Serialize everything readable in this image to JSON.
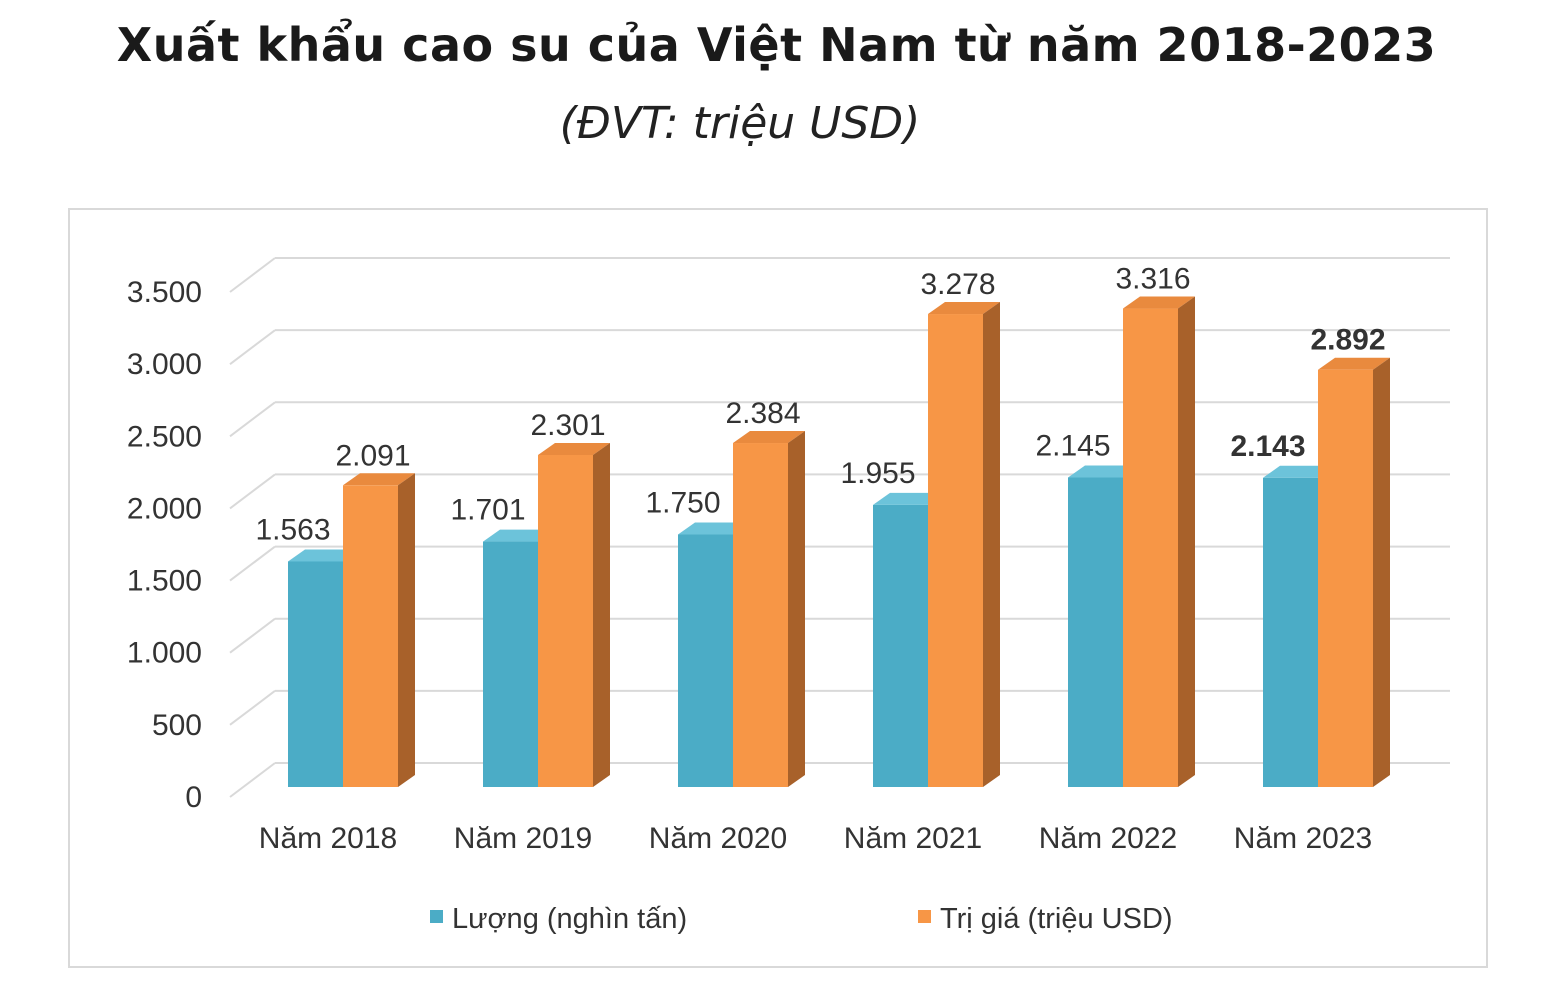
{
  "chart_data": {
    "type": "bar",
    "title": "Xuất khẩu cao su của Việt Nam từ năm 2018-2023",
    "subtitle": "(ĐVT: triệu USD)",
    "categories": [
      "Năm 2018",
      "Năm 2019",
      "Năm 2020",
      "Năm 2021",
      "Năm 2022",
      "Năm 2023"
    ],
    "series": [
      {
        "name": "Lượng (nghìn tấn)",
        "values": [
          1563,
          1701,
          1750,
          1955,
          2145,
          2143
        ],
        "labels": [
          "1.563",
          "1.701",
          "1.750",
          "1.955",
          "2.145",
          "2.143"
        ],
        "color": "#4bacc6"
      },
      {
        "name": "Trị giá (triệu USD)",
        "values": [
          2091,
          2301,
          2384,
          3278,
          3316,
          2892
        ],
        "labels": [
          "2.091",
          "2.301",
          "2.384",
          "3.278",
          "3.316",
          "2.892"
        ],
        "color": "#f79646"
      }
    ],
    "yticks": [
      0,
      500,
      1000,
      1500,
      2000,
      2500,
      3000,
      3500
    ],
    "ytick_labels": [
      "0",
      "500",
      "1.000",
      "1.500",
      "2.000",
      "2.500",
      "3.000",
      "3.500"
    ],
    "ylim": [
      0,
      3500
    ],
    "grid": true,
    "style": "3d-column",
    "legend_position": "bottom"
  }
}
